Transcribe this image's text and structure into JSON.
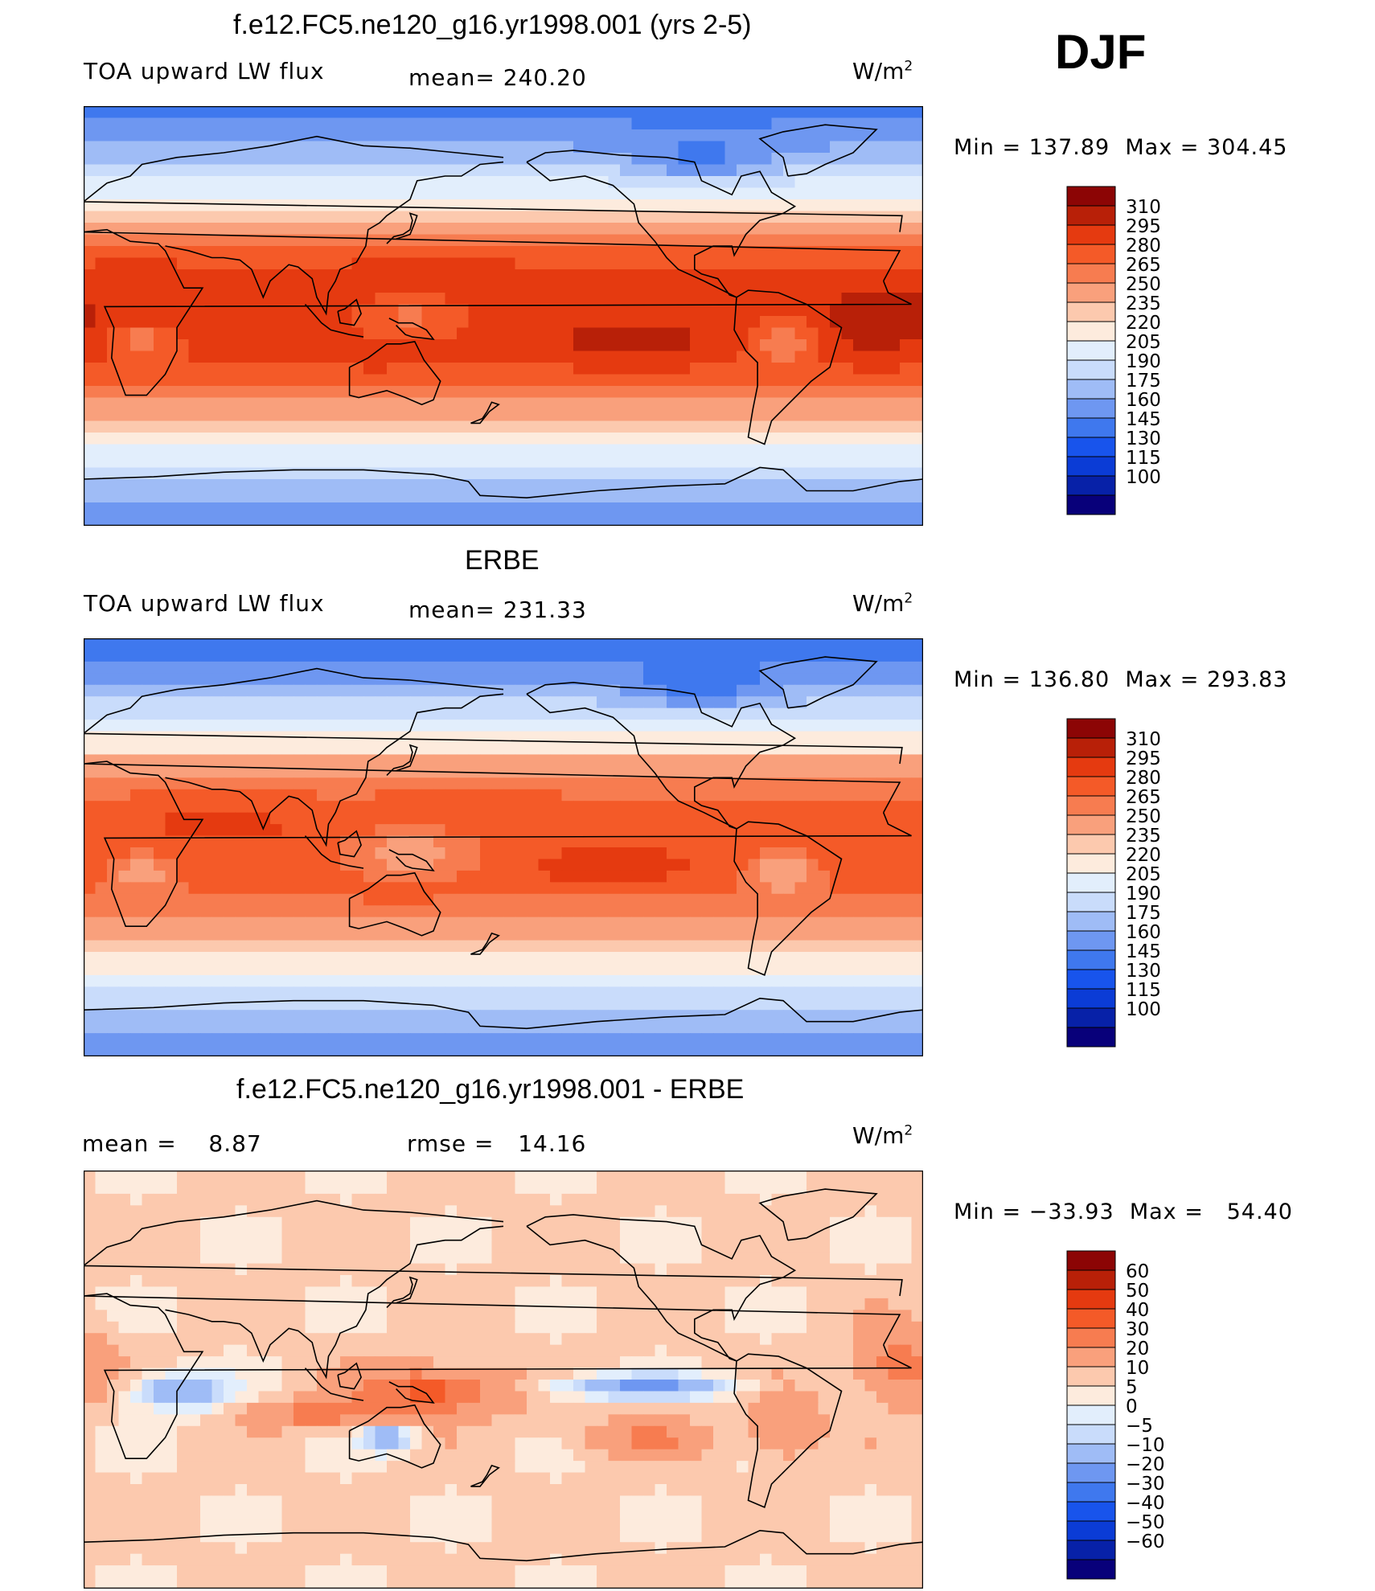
{
  "season": "DJF",
  "colors": {
    "abs_scale": [
      "#08007a",
      "#0721a8",
      "#0b3cd6",
      "#1854ec",
      "#3f78ee",
      "#6e97f1",
      "#9fbcf6",
      "#c9dcfb",
      "#e2eefc",
      "#fdebdd",
      "#fcc9ae",
      "#f9a07c",
      "#f77c50",
      "#f45a28",
      "#e53a10",
      "#b82008",
      "#8c0505"
    ],
    "diff_scale": [
      "#08007a",
      "#0721a8",
      "#0b3cd6",
      "#1854ec",
      "#3f78ee",
      "#6e97f1",
      "#9fbcf6",
      "#c9dcfb",
      "#e2eefc",
      "#fdebdd",
      "#fcc9ae",
      "#f9a07c",
      "#f77c50",
      "#f45a28",
      "#e53a10",
      "#b82008",
      "#8c0505"
    ]
  },
  "chart_data": [
    {
      "type": "heatmap",
      "title": "f.e12.FC5.ne120_g16.yr1998.001 (yrs 2-5)",
      "variable": "TOA upward LW flux",
      "mean_label": "mean=",
      "mean": "240.20",
      "units_base": "W/m",
      "units_exp": "2",
      "min_label": "Min  =",
      "min": "137.89",
      "max_label": "Max  =",
      "max": "304.45",
      "colorbar": [
        "310",
        "295",
        "280",
        "265",
        "250",
        "235",
        "220",
        "205",
        "190",
        "175",
        "160",
        "145",
        "130",
        "115",
        "100"
      ],
      "field": {
        "kind": "abs",
        "tropic_max": 292,
        "pole_min": 150,
        "regions": [
          {
            "lon": 150,
            "lat": 20,
            "w": 40,
            "h": 9,
            "amp": 12
          },
          {
            "lon": 235,
            "lat": -15,
            "w": 40,
            "h": 9,
            "amp": 14
          },
          {
            "lon": 340,
            "lat": -5,
            "w": 25,
            "h": 20,
            "amp": 12
          },
          {
            "lon": 25,
            "lat": 20,
            "w": 25,
            "h": 10,
            "amp": 8
          },
          {
            "lon": 125,
            "lat": -25,
            "w": 20,
            "h": 10,
            "amp": 6
          },
          {
            "lon": 140,
            "lat": 0,
            "w": 25,
            "h": 10,
            "amp": -30
          },
          {
            "lon": 25,
            "lat": -10,
            "w": 15,
            "h": 8,
            "amp": -30
          },
          {
            "lon": 300,
            "lat": -10,
            "w": 15,
            "h": 10,
            "amp": -35
          },
          {
            "lon": 265,
            "lat": 65,
            "w": 30,
            "h": 10,
            "amp": -30
          }
        ]
      }
    },
    {
      "type": "heatmap",
      "title": "ERBE",
      "variable": "TOA upward LW flux",
      "mean_label": "mean=",
      "mean": "231.33",
      "units_base": "W/m",
      "units_exp": "2",
      "min_label": "Min  =",
      "min": "136.80",
      "max_label": "Max  =",
      "max": "293.83",
      "colorbar": [
        "310",
        "295",
        "280",
        "265",
        "250",
        "235",
        "220",
        "205",
        "190",
        "175",
        "160",
        "145",
        "130",
        "115",
        "100"
      ],
      "field": {
        "kind": "abs",
        "tropic_max": 278,
        "pole_min": 150,
        "regions": [
          {
            "lon": 165,
            "lat": 22,
            "w": 30,
            "h": 7,
            "amp": 12
          },
          {
            "lon": 225,
            "lat": -10,
            "w": 35,
            "h": 7,
            "amp": 12
          },
          {
            "lon": 60,
            "lat": 15,
            "w": 40,
            "h": 10,
            "amp": 10
          },
          {
            "lon": 135,
            "lat": -25,
            "w": 20,
            "h": 8,
            "amp": 6
          },
          {
            "lon": 140,
            "lat": -2,
            "w": 30,
            "h": 10,
            "amp": -38
          },
          {
            "lon": 25,
            "lat": -10,
            "w": 15,
            "h": 8,
            "amp": -35
          },
          {
            "lon": 300,
            "lat": -10,
            "w": 15,
            "h": 10,
            "amp": -38
          },
          {
            "lon": 265,
            "lat": 68,
            "w": 30,
            "h": 10,
            "amp": -30
          }
        ]
      }
    },
    {
      "type": "heatmap",
      "title": "f.e12.FC5.ne120_g16.yr1998.001 - ERBE",
      "mean_label": "mean =",
      "mean": "8.87",
      "rmse_label": "rmse =",
      "rmse": "14.16",
      "units_base": "W/m",
      "units_exp": "2",
      "min_label": "Min  =",
      "min": "−33.93",
      "max_label": "Max  =",
      "max": "54.40",
      "colorbar": [
        "60",
        "50",
        "40",
        "30",
        "20",
        "10",
        "5",
        "0",
        "−5",
        "−10",
        "−20",
        "−30",
        "−40",
        "−50",
        "−60"
      ],
      "field": {
        "kind": "diff",
        "regions": [
          {
            "lon": 150,
            "lat": -5,
            "w": 30,
            "h": 10,
            "amp": 30
          },
          {
            "lon": 240,
            "lat": -3,
            "w": 40,
            "h": 5,
            "amp": -28
          },
          {
            "lon": 40,
            "lat": -5,
            "w": 20,
            "h": 8,
            "amp": -25
          },
          {
            "lon": 130,
            "lat": -25,
            "w": 10,
            "h": 6,
            "amp": -25
          },
          {
            "lon": 100,
            "lat": -15,
            "w": 30,
            "h": 6,
            "amp": 18
          },
          {
            "lon": 350,
            "lat": 5,
            "w": 20,
            "h": 15,
            "amp": 20
          },
          {
            "lon": 300,
            "lat": -20,
            "w": 15,
            "h": 15,
            "amp": 15
          },
          {
            "lon": 240,
            "lat": -25,
            "w": 30,
            "h": 8,
            "amp": 14
          }
        ]
      }
    }
  ]
}
